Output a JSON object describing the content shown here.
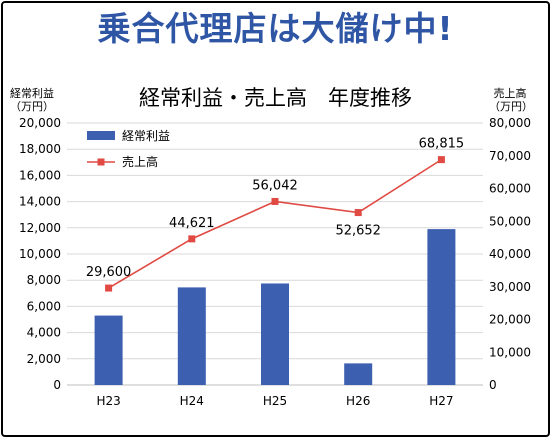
{
  "headline": "乗合代理店は大儲け中!",
  "colors": {
    "headline": "#2f55a5",
    "bar": "#3d5fb0",
    "line": "#e04a43",
    "grid": "#d9d9d9"
  },
  "chart_data": {
    "type": "bar",
    "title": "経常利益・売上高　年度推移",
    "categories": [
      "H23",
      "H24",
      "H25",
      "H26",
      "H27"
    ],
    "y_left": {
      "label_line1": "経常利益",
      "label_line2": "（万円）",
      "ylim": [
        0,
        20000
      ],
      "ticks": [
        "0",
        "2,000",
        "4,000",
        "6,000",
        "8,000",
        "10,000",
        "12,000",
        "14,000",
        "16,000",
        "18,000",
        "20,000"
      ]
    },
    "y_right": {
      "label_line1": "売上高",
      "label_line2": "（万円）",
      "ylim": [
        0,
        80000
      ],
      "ticks": [
        "0",
        "10,000",
        "20,000",
        "30,000",
        "40,000",
        "50,000",
        "60,000",
        "70,000",
        "80,000"
      ]
    },
    "grid": true,
    "legend_position": "top-left",
    "series": [
      {
        "name": "経常利益",
        "type": "bar",
        "axis": "left",
        "values": [
          5300,
          7450,
          7750,
          1650,
          11900
        ]
      },
      {
        "name": "売上高",
        "type": "line",
        "axis": "right",
        "values": [
          29600,
          44621,
          56042,
          52652,
          68815
        ],
        "data_labels": [
          "29,600",
          "44,621",
          "56,042",
          "52,652",
          "68,815"
        ]
      }
    ]
  }
}
